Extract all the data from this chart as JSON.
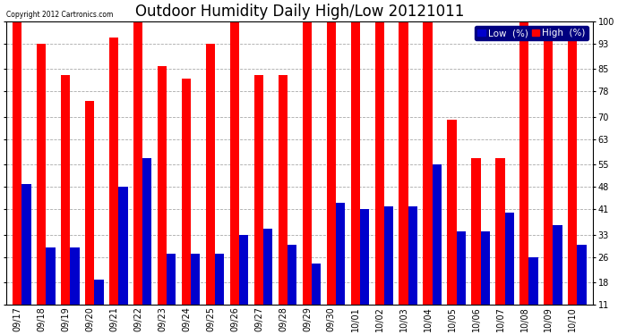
{
  "title": "Outdoor Humidity Daily High/Low 20121011",
  "copyright": "Copyright 2012 Cartronics.com",
  "categories": [
    "09/17",
    "09/18",
    "09/19",
    "09/20",
    "09/21",
    "09/22",
    "09/23",
    "09/24",
    "09/25",
    "09/26",
    "09/27",
    "09/28",
    "09/29",
    "09/30",
    "10/01",
    "10/02",
    "10/03",
    "10/04",
    "10/05",
    "10/06",
    "10/07",
    "10/08",
    "10/09",
    "10/10"
  ],
  "high": [
    100,
    93,
    83,
    75,
    95,
    100,
    86,
    82,
    93,
    100,
    83,
    83,
    100,
    100,
    100,
    100,
    100,
    100,
    69,
    57,
    57,
    100,
    95,
    95
  ],
  "low": [
    49,
    29,
    29,
    19,
    48,
    57,
    27,
    27,
    27,
    33,
    35,
    30,
    24,
    43,
    41,
    42,
    42,
    55,
    34,
    34,
    40,
    26,
    36,
    30
  ],
  "high_color": "#ff0000",
  "low_color": "#0000cc",
  "bg_color": "#ffffff",
  "yticks": [
    11,
    18,
    26,
    33,
    41,
    48,
    55,
    63,
    70,
    78,
    85,
    93,
    100
  ],
  "ymin": 11,
  "ymax": 100,
  "grid_color": "#aaaaaa",
  "title_fontsize": 12,
  "tick_fontsize": 7,
  "legend_fontsize": 7.5,
  "bar_width": 0.38
}
